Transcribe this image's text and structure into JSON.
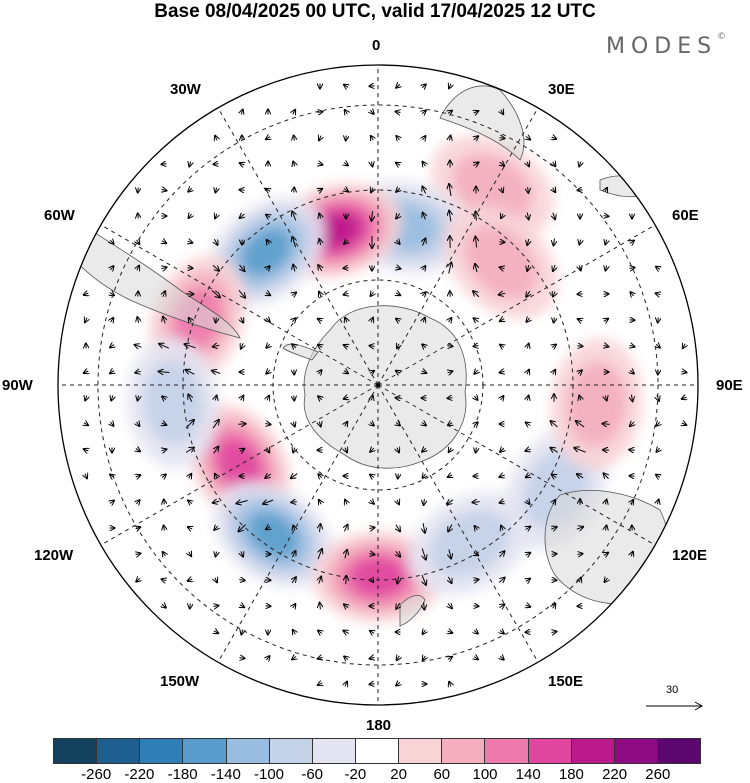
{
  "title": "Base 08/04/2025 00 UTC, valid 17/04/2025 12 UTC",
  "brand": "MODES",
  "brand_mark": "©",
  "longitude_labels": {
    "top": "0",
    "top_right": "30E",
    "right_upper": "60E",
    "right": "90E",
    "right_lower": "120E",
    "bottom_right": "150E",
    "bottom": "180",
    "bottom_left": "150W",
    "left_lower": "120W",
    "left": "90W",
    "left_upper": "60W",
    "top_left": "30W"
  },
  "reference_vector": {
    "value": "30"
  },
  "colorbar": {
    "colors": [
      "#14425e",
      "#1d5f8f",
      "#2f7fb6",
      "#5a9dcc",
      "#98bde0",
      "#c4d2e8",
      "#e4e4f2",
      "#ffffff",
      "#f8d4d6",
      "#f4aebf",
      "#ee7aac",
      "#df469e",
      "#bb1a8c",
      "#8e0b83",
      "#5c0670"
    ],
    "tick_labels": [
      "-260",
      "-220",
      "-180",
      "-140",
      "-100",
      "-60",
      "-20",
      "20",
      "60",
      "100",
      "140",
      "180",
      "220",
      "260"
    ]
  },
  "map": {
    "projection": "south polar stereographic",
    "field": "geopotential height anomaly with wind vectors",
    "anomaly_centers": [
      {
        "lon": 30,
        "lat": -40,
        "value": 100
      },
      {
        "lon": 10,
        "lat": -55,
        "value": -140
      },
      {
        "lon": -15,
        "lat": -55,
        "value": 200
      },
      {
        "lon": -40,
        "lat": -52,
        "value": -160
      },
      {
        "lon": -70,
        "lat": -48,
        "value": 140
      },
      {
        "lon": 45,
        "lat": -52,
        "value": 80
      },
      {
        "lon": -120,
        "lat": -55,
        "value": 180
      },
      {
        "lon": -145,
        "lat": -50,
        "value": -180
      },
      {
        "lon": 180,
        "lat": -48,
        "value": 160
      },
      {
        "lon": 150,
        "lat": -50,
        "value": -100
      },
      {
        "lon": 120,
        "lat": -45,
        "value": -100
      },
      {
        "lon": 95,
        "lat": -42,
        "value": 80
      },
      {
        "lon": -95,
        "lat": -45,
        "value": -80
      }
    ]
  }
}
